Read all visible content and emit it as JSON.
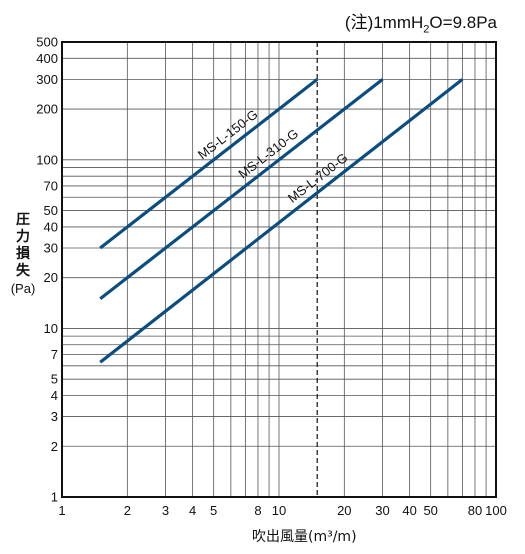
{
  "note": {
    "prefix": "(注)1mmH",
    "sub": "2",
    "suffix": "O=9.8Pa"
  },
  "ylabel": {
    "lines": [
      "圧",
      "力",
      "損",
      "失"
    ],
    "unit": "(Pa)"
  },
  "xlabel": "吹出風量(m³/m)",
  "chart_data": {
    "type": "line",
    "xscale": "log",
    "yscale": "log",
    "xlim": [
      1,
      100
    ],
    "ylim": [
      1,
      500
    ],
    "grid": true,
    "reference_line_x": 15,
    "xticks": [
      1,
      2,
      3,
      4,
      5,
      8,
      10,
      20,
      30,
      40,
      50,
      80,
      100
    ],
    "xtick_labels": [
      "1",
      "2",
      "3",
      "4",
      "5",
      "8",
      "10",
      "20",
      "30",
      "40",
      "50",
      "80",
      "100"
    ],
    "yticks": [
      1,
      2,
      3,
      4,
      5,
      7,
      10,
      20,
      30,
      40,
      50,
      70,
      100,
      200,
      300,
      400,
      500
    ],
    "ytick_labels": [
      "1",
      "2",
      "3",
      "4",
      "5",
      "7",
      "10",
      "20",
      "30",
      "40",
      "50",
      "70",
      "100",
      "200",
      "300",
      "400",
      "500"
    ],
    "series": [
      {
        "name": "MS-L-150-G",
        "x": [
          1.5,
          15
        ],
        "y": [
          30,
          300
        ],
        "color": "#0d4d7e"
      },
      {
        "name": "MS-L-310-G",
        "x": [
          1.5,
          30
        ],
        "y": [
          15,
          300
        ],
        "color": "#0d4d7e"
      },
      {
        "name": "MS-L-700-G",
        "x": [
          1.5,
          70
        ],
        "y": [
          6.3,
          300
        ],
        "color": "#0d4d7e"
      }
    ]
  }
}
